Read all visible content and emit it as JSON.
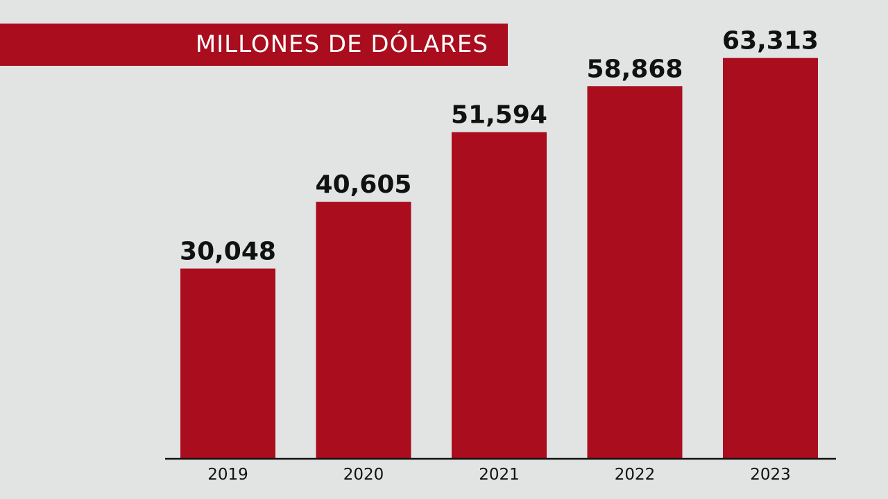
{
  "colors": {
    "background": "#e2e4e4",
    "bar": "#a90d1e",
    "banner": "#a90d1e",
    "text": "#111111",
    "axis": "#111111"
  },
  "chart_data": {
    "type": "bar",
    "title": "MILLONES DE DÓLARES",
    "xlabel": "",
    "ylabel": "",
    "categories": [
      "2019",
      "2020",
      "2021",
      "2022",
      "2023"
    ],
    "values": [
      30048,
      40605,
      51594,
      58868,
      63313
    ],
    "value_labels": [
      "30,048",
      "40,605",
      "51,594",
      "58,868",
      "63,313"
    ],
    "ylim": [
      0,
      67000
    ],
    "grid": false,
    "legend": "none"
  }
}
